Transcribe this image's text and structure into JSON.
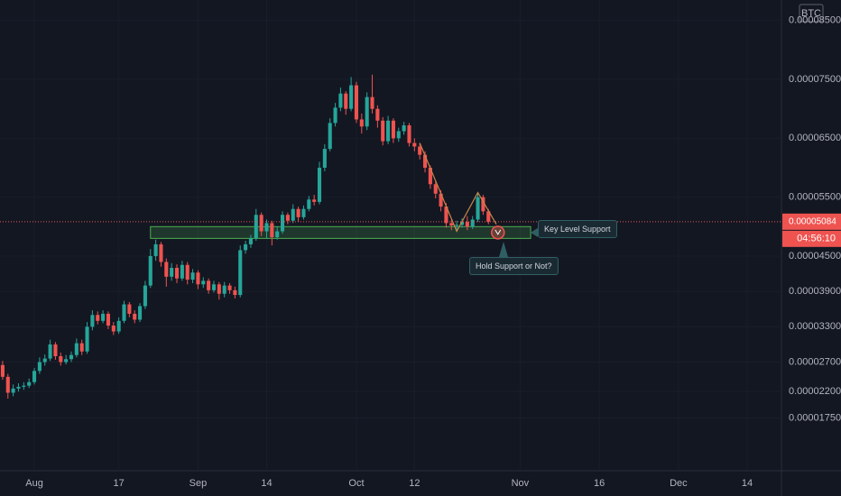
{
  "chart_data": {
    "type": "candlestick",
    "unit_label": "BTC",
    "up_color": "#26a69a",
    "down_color": "#ef5350",
    "open": [
      2.65e-05,
      2.45e-05,
      2.18e-05,
      2.25e-05,
      2.28e-05,
      2.3e-05,
      2.36e-05,
      2.55e-05,
      2.7e-05,
      2.76e-05,
      3e-05,
      2.8e-05,
      2.7e-05,
      2.75e-05,
      2.82e-05,
      3.02e-05,
      2.88e-05,
      3.3e-05,
      3.5e-05,
      3.4e-05,
      3.52e-05,
      3.32e-05,
      3.22e-05,
      3.4e-05,
      3.68e-05,
      3.52e-05,
      3.42e-05,
      3.65e-05,
      4e-05,
      4.5e-05,
      4.7e-05,
      4.4e-05,
      4.15e-05,
      4.3e-05,
      4.12e-05,
      4.35e-05,
      4.1e-05,
      4.22e-05,
      4.02e-05,
      4.08e-05,
      3.92e-05,
      4.02e-05,
      3.86e-05,
      4e-05,
      3.92e-05,
      3.84e-05,
      4.6e-05,
      4.7e-05,
      4.8e-05,
      5.2e-05,
      4.92e-05,
      5.06e-05,
      4.82e-05,
      4.92e-05,
      5.2e-05,
      5.1e-05,
      5.3e-05,
      5.16e-05,
      5.3e-05,
      5.46e-05,
      5.42e-05,
      6e-05,
      6.32e-05,
      6.76e-05,
      7.02e-05,
      7.26e-05,
      7e-05,
      7.4e-05,
      6.82e-05,
      6.7e-05,
      7.2e-05,
      7e-05,
      6.8e-05,
      6.45e-05,
      6.8e-05,
      6.5e-05,
      6.62e-05,
      6.72e-05,
      6.42e-05,
      6.36e-05,
      6.22e-05,
      6e-05,
      5.72e-05,
      5.56e-05,
      5.34e-05,
      5.06e-05,
      5.02e-05,
      5.03e-05,
      5.08e-05,
      5e-05,
      5.12e-05,
      5.5e-05,
      5.26e-05
    ],
    "high": [
      2.72e-05,
      2.5e-05,
      2.32e-05,
      2.34e-05,
      2.36e-05,
      2.42e-05,
      2.6e-05,
      2.78e-05,
      2.83e-05,
      3.08e-05,
      3.04e-05,
      2.86e-05,
      2.82e-05,
      2.88e-05,
      3.1e-05,
      3.08e-05,
      3.38e-05,
      3.58e-05,
      3.56e-05,
      3.58e-05,
      3.56e-05,
      3.38e-05,
      3.46e-05,
      3.74e-05,
      3.72e-05,
      3.58e-05,
      3.7e-05,
      4.08e-05,
      4.62e-05,
      4.78e-05,
      4.74e-05,
      4.46e-05,
      4.38e-05,
      4.36e-05,
      4.42e-05,
      4.4e-05,
      4.28e-05,
      4.26e-05,
      4.14e-05,
      4.12e-05,
      4.08e-05,
      4.06e-05,
      4.06e-05,
      4.04e-05,
      3.98e-05,
      4.68e-05,
      4.76e-05,
      4.86e-05,
      5.3e-05,
      5.24e-05,
      5.12e-05,
      5.1e-05,
      5e-05,
      5.26e-05,
      5.24e-05,
      5.38e-05,
      5.34e-05,
      5.36e-05,
      5.52e-05,
      5.54e-05,
      6.1e-05,
      6.4e-05,
      6.84e-05,
      7.1e-05,
      7.36e-05,
      7.3e-05,
      7.54e-05,
      7.46e-05,
      6.92e-05,
      7.28e-05,
      7.58e-05,
      7.06e-05,
      6.86e-05,
      6.88e-05,
      6.84e-05,
      6.68e-05,
      6.78e-05,
      6.76e-05,
      6.5e-05,
      6.42e-05,
      6.28e-05,
      6.04e-05,
      5.78e-05,
      5.62e-05,
      5.4e-05,
      5.12e-05,
      5.1e-05,
      5.14e-05,
      5.18e-05,
      5.18e-05,
      5.58e-05,
      5.54e-05,
      5.3e-05
    ],
    "low": [
      2.4e-05,
      2.08e-05,
      2.12e-05,
      2.2e-05,
      2.23e-05,
      2.26e-05,
      2.32e-05,
      2.5e-05,
      2.64e-05,
      2.72e-05,
      2.74e-05,
      2.64e-05,
      2.66e-05,
      2.7e-05,
      2.78e-05,
      2.82e-05,
      2.84e-05,
      3.24e-05,
      3.34e-05,
      3.36e-05,
      3.26e-05,
      3.16e-05,
      3.18e-05,
      3.36e-05,
      3.46e-05,
      3.36e-05,
      3.38e-05,
      3.6e-05,
      3.96e-05,
      4.42e-05,
      4.32e-05,
      3.98e-05,
      4.08e-05,
      4.04e-05,
      4.08e-05,
      4.02e-05,
      4.04e-05,
      3.94e-05,
      3.96e-05,
      3.86e-05,
      3.88e-05,
      3.76e-05,
      3.8e-05,
      3.86e-05,
      3.78e-05,
      3.8e-05,
      4.54e-05,
      4.64e-05,
      4.76e-05,
      4.84e-05,
      4.8e-05,
      4.68e-05,
      4.78e-05,
      4.88e-05,
      5.04e-05,
      5.06e-05,
      5.08e-05,
      5.12e-05,
      5.26e-05,
      5.36e-05,
      5.38e-05,
      5.94e-05,
      6.28e-05,
      6.7e-05,
      6.96e-05,
      6.9e-05,
      6.96e-05,
      6.76e-05,
      6.58e-05,
      6.64e-05,
      6.92e-05,
      6.68e-05,
      6.38e-05,
      6.4e-05,
      6.42e-05,
      6.44e-05,
      6.56e-05,
      6.36e-05,
      6.28e-05,
      6.14e-05,
      5.92e-05,
      5.64e-05,
      5.48e-05,
      5.26e-05,
      4.98e-05,
      4.94e-05,
      4.92e-05,
      4.98e-05,
      4.94e-05,
      4.96e-05,
      5.08e-05,
      5.2e-05,
      5.04e-05
    ],
    "close": [
      2.45e-05,
      2.18e-05,
      2.25e-05,
      2.28e-05,
      2.3e-05,
      2.36e-05,
      2.55e-05,
      2.7e-05,
      2.76e-05,
      3e-05,
      2.8e-05,
      2.7e-05,
      2.75e-05,
      2.82e-05,
      3.02e-05,
      2.88e-05,
      3.3e-05,
      3.5e-05,
      3.4e-05,
      3.52e-05,
      3.32e-05,
      3.22e-05,
      3.4e-05,
      3.68e-05,
      3.52e-05,
      3.42e-05,
      3.65e-05,
      4e-05,
      4.5e-05,
      4.7e-05,
      4.4e-05,
      4.15e-05,
      4.3e-05,
      4.12e-05,
      4.35e-05,
      4.1e-05,
      4.22e-05,
      4.02e-05,
      4.08e-05,
      3.92e-05,
      4.02e-05,
      3.86e-05,
      4e-05,
      3.92e-05,
      3.84e-05,
      4.6e-05,
      4.7e-05,
      4.8e-05,
      5.2e-05,
      4.92e-05,
      5.06e-05,
      4.82e-05,
      4.92e-05,
      5.2e-05,
      5.1e-05,
      5.3e-05,
      5.16e-05,
      5.3e-05,
      5.46e-05,
      5.42e-05,
      6e-05,
      6.32e-05,
      6.76e-05,
      7.02e-05,
      7.26e-05,
      7e-05,
      7.4e-05,
      6.82e-05,
      6.7e-05,
      7.2e-05,
      7e-05,
      6.8e-05,
      6.45e-05,
      6.8e-05,
      6.5e-05,
      6.62e-05,
      6.72e-05,
      6.42e-05,
      6.36e-05,
      6.22e-05,
      6e-05,
      5.72e-05,
      5.56e-05,
      5.34e-05,
      5.06e-05,
      5.02e-05,
      5.03e-05,
      5.08e-05,
      5e-05,
      5.12e-05,
      5.5e-05,
      5.26e-05,
      5.084e-05
    ],
    "xlim": [
      -0.5,
      147.5
    ],
    "xticks": [
      {
        "value": 6,
        "label": "Aug"
      },
      {
        "value": 22,
        "label": "17"
      },
      {
        "value": 37,
        "label": "Sep"
      },
      {
        "value": 50,
        "label": "14"
      },
      {
        "value": 67,
        "label": "Oct"
      },
      {
        "value": 78,
        "label": "12"
      },
      {
        "value": 98,
        "label": "Nov"
      },
      {
        "value": 113,
        "label": "16"
      },
      {
        "value": 128,
        "label": "Dec"
      },
      {
        "value": 141,
        "label": "14"
      }
    ],
    "ylim": [
      8.55e-06,
      8.848e-05
    ],
    "yticks": [
      {
        "value": 1.75e-05,
        "label": "0.00001750"
      },
      {
        "value": 2.2e-05,
        "label": "0.00002200"
      },
      {
        "value": 2.7e-05,
        "label": "0.00002700"
      },
      {
        "value": 3.3e-05,
        "label": "0.00003300"
      },
      {
        "value": 3.9e-05,
        "label": "0.00003900"
      },
      {
        "value": 4.5e-05,
        "label": "0.00004500"
      },
      {
        "value": 5.5e-05,
        "label": "0.00005500"
      },
      {
        "value": 6.5e-05,
        "label": "0.00006500"
      },
      {
        "value": 7.5e-05,
        "label": "0.00007500"
      },
      {
        "value": 8.5e-05,
        "label": "0.00008500"
      }
    ],
    "last_price": {
      "value": 5.084e-05,
      "label": "0.00005084"
    },
    "countdown": "04:56:10",
    "support_zone": [
      4.8e-05,
      5e-05
    ],
    "annotations": [
      "Key Level Support",
      "Hold Support or Not?"
    ]
  }
}
